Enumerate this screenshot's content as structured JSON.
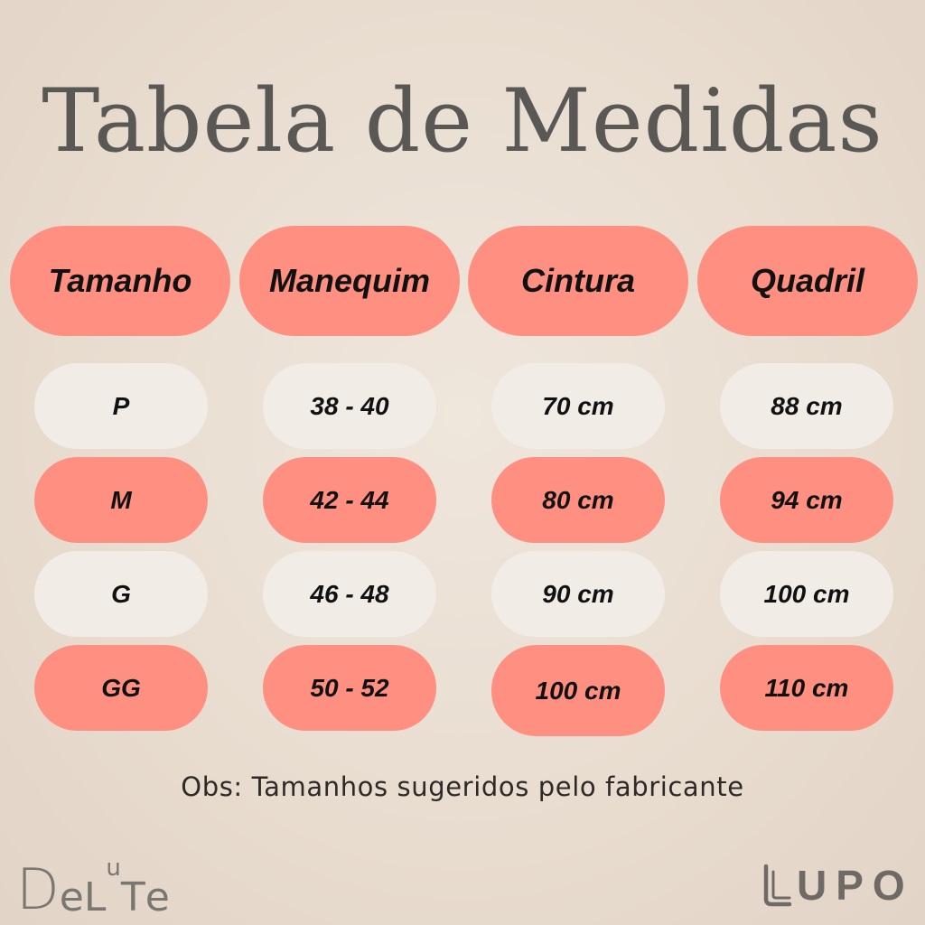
{
  "title": "Tabela de Medidas",
  "headers": [
    "Tamanho",
    "Manequim",
    "Cintura",
    "Quadril"
  ],
  "rows": [
    [
      "P",
      "38 - 40",
      "70 cm",
      "88 cm"
    ],
    [
      "M",
      "42 - 44",
      "80 cm",
      "94 cm"
    ],
    [
      "G",
      "46 - 48",
      "90 cm",
      "100 cm"
    ],
    [
      "GG",
      "50 - 52",
      "100 cm",
      "110 cm"
    ]
  ],
  "note": "Obs: Tamanhos sugeridos pelo fabricante",
  "brands": {
    "left": "DeLuTe",
    "right": "LUPO"
  },
  "colors": {
    "coral": "#ff8f80",
    "light": "#f2ece6",
    "background": "#e8dccf",
    "title": "#5a5855"
  }
}
